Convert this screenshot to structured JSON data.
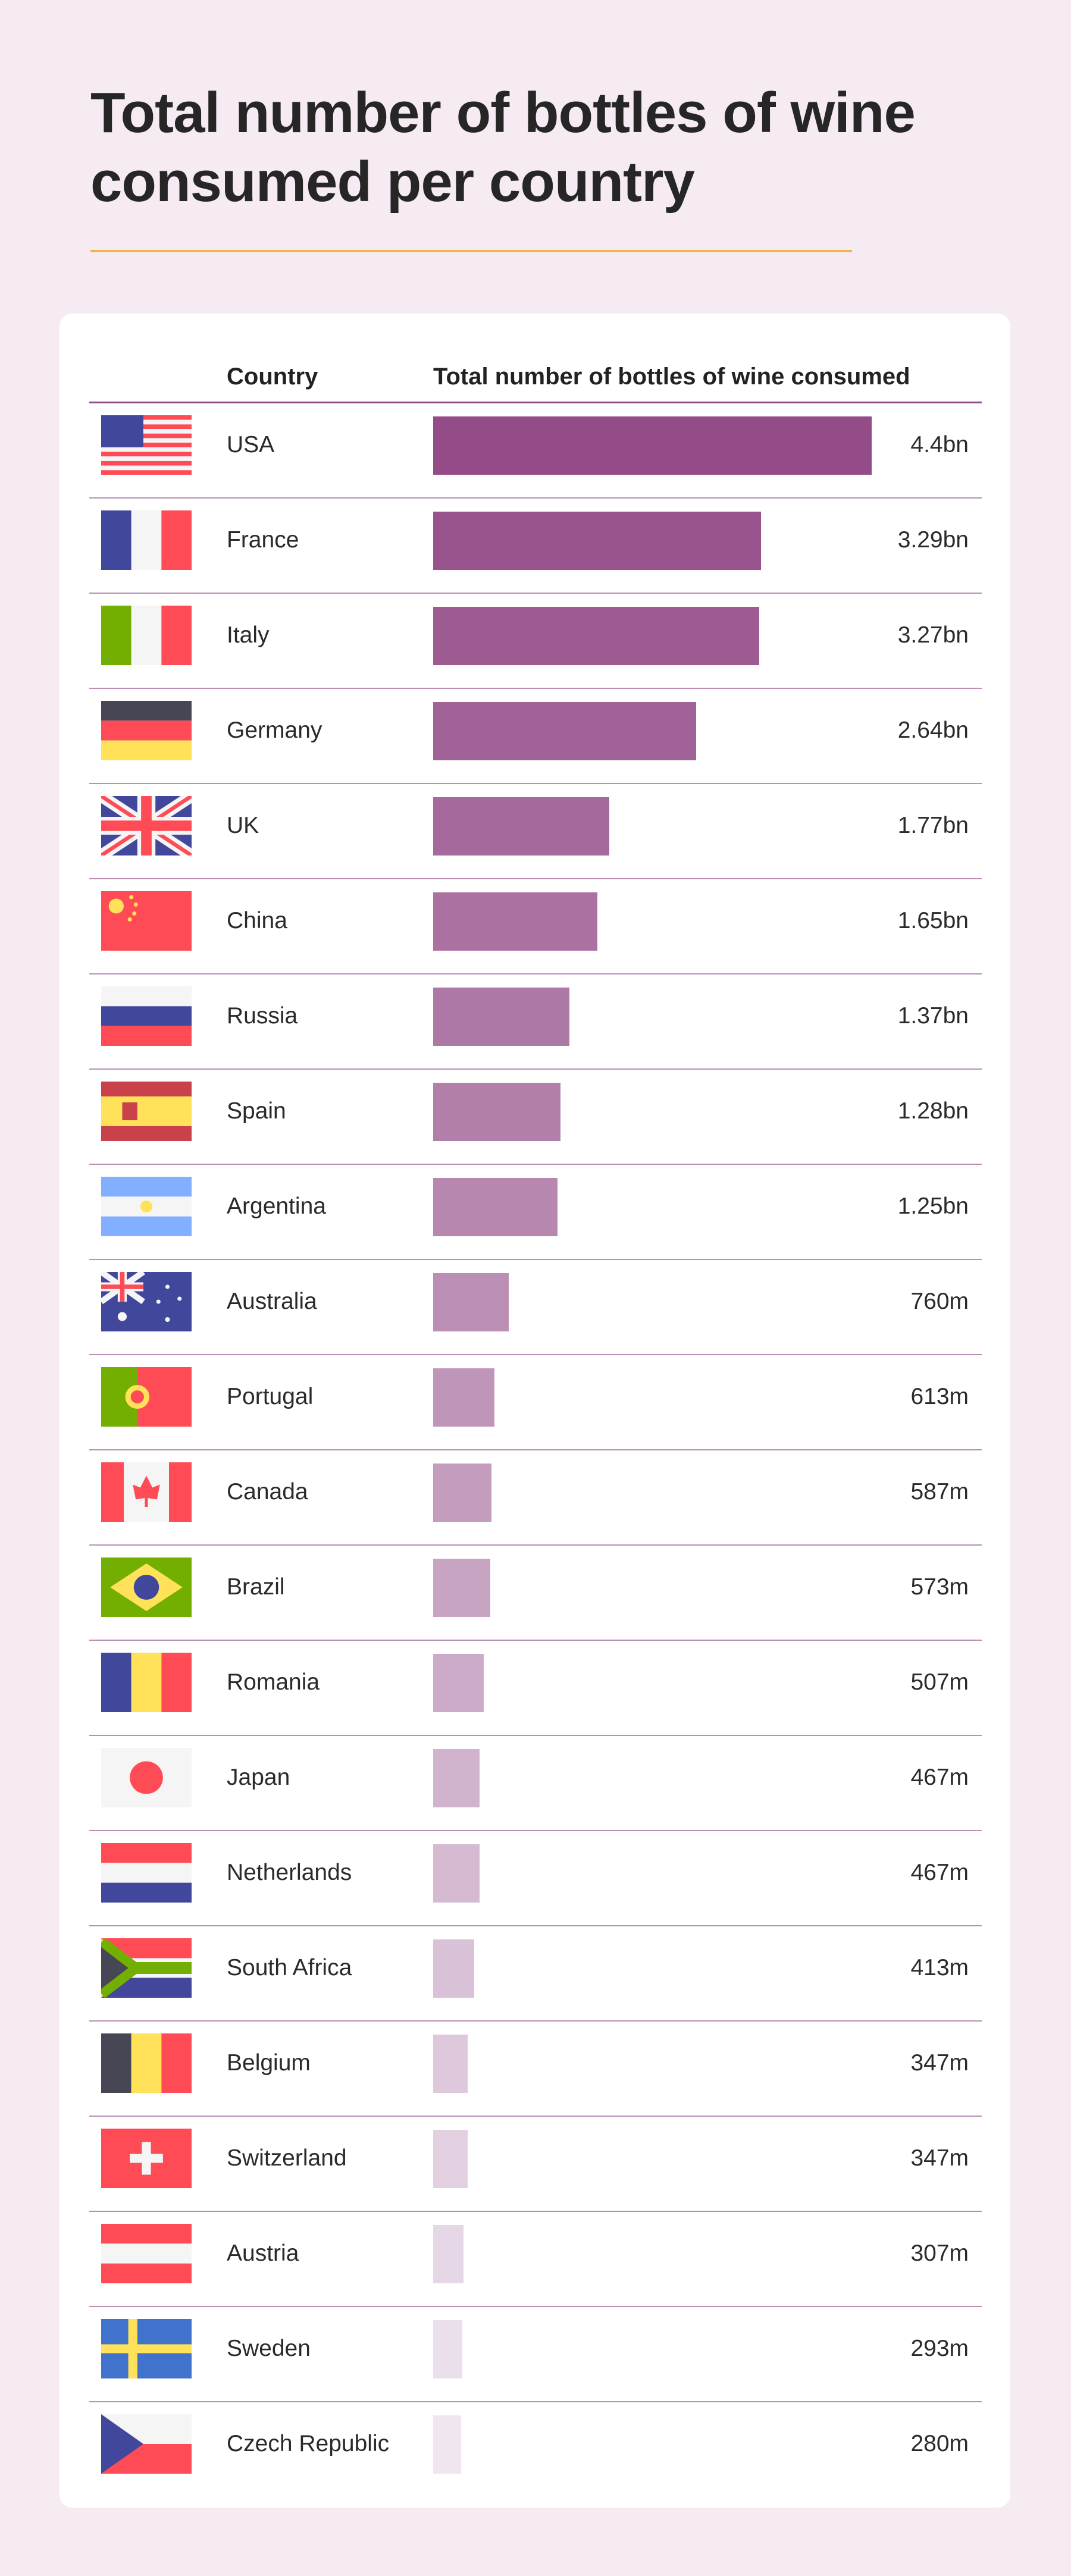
{
  "title": "Total number of bottles of wine consumed per country",
  "accent_rule_color": "#f2b34f",
  "chart_data": {
    "type": "bar",
    "orientation": "horizontal",
    "title": "Total number of bottles of wine consumed per country",
    "columns": [
      "Country",
      "Total number of bottles of wine consumed"
    ],
    "unit": "bottles (billions)",
    "bar_color_start": "#944c88",
    "bar_color_end": "#efe6f0",
    "xlim": [
      0,
      4.4
    ],
    "rows": [
      {
        "country": "USA",
        "flag": "usa-flag",
        "value": 4.4,
        "label": "4.4bn"
      },
      {
        "country": "France",
        "flag": "france-flag",
        "value": 3.29,
        "label": "3.29bn"
      },
      {
        "country": "Italy",
        "flag": "italy-flag",
        "value": 3.27,
        "label": "3.27bn"
      },
      {
        "country": "Germany",
        "flag": "germany-flag",
        "value": 2.64,
        "label": "2.64bn"
      },
      {
        "country": "UK",
        "flag": "uk-flag",
        "value": 1.77,
        "label": "1.77bn"
      },
      {
        "country": "China",
        "flag": "china-flag",
        "value": 1.65,
        "label": "1.65bn"
      },
      {
        "country": "Russia",
        "flag": "russia-flag",
        "value": 1.37,
        "label": "1.37bn"
      },
      {
        "country": "Spain",
        "flag": "spain-flag",
        "value": 1.28,
        "label": "1.28bn"
      },
      {
        "country": "Argentina",
        "flag": "argentina-flag",
        "value": 1.25,
        "label": "1.25bn"
      },
      {
        "country": "Australia",
        "flag": "australia-flag",
        "value": 0.76,
        "label": "760m"
      },
      {
        "country": "Portugal",
        "flag": "portugal-flag",
        "value": 0.613,
        "label": "613m"
      },
      {
        "country": "Canada",
        "flag": "canada-flag",
        "value": 0.587,
        "label": "587m"
      },
      {
        "country": "Brazil",
        "flag": "brazil-flag",
        "value": 0.573,
        "label": "573m"
      },
      {
        "country": "Romania",
        "flag": "romania-flag",
        "value": 0.507,
        "label": "507m"
      },
      {
        "country": "Japan",
        "flag": "japan-flag",
        "value": 0.467,
        "label": "467m"
      },
      {
        "country": "Netherlands",
        "flag": "netherlands-flag",
        "value": 0.467,
        "label": "467m"
      },
      {
        "country": "South Africa",
        "flag": "south-africa-flag",
        "value": 0.413,
        "label": "413m"
      },
      {
        "country": "Belgium",
        "flag": "belgium-flag",
        "value": 0.347,
        "label": "347m"
      },
      {
        "country": "Switzerland",
        "flag": "switzerland-flag",
        "value": 0.347,
        "label": "347m"
      },
      {
        "country": "Austria",
        "flag": "austria-flag",
        "value": 0.307,
        "label": "307m"
      },
      {
        "country": "Sweden",
        "flag": "sweden-flag",
        "value": 0.293,
        "label": "293m"
      },
      {
        "country": "Czech Republic",
        "flag": "czech-republic-flag",
        "value": 0.28,
        "label": "280m"
      }
    ]
  }
}
